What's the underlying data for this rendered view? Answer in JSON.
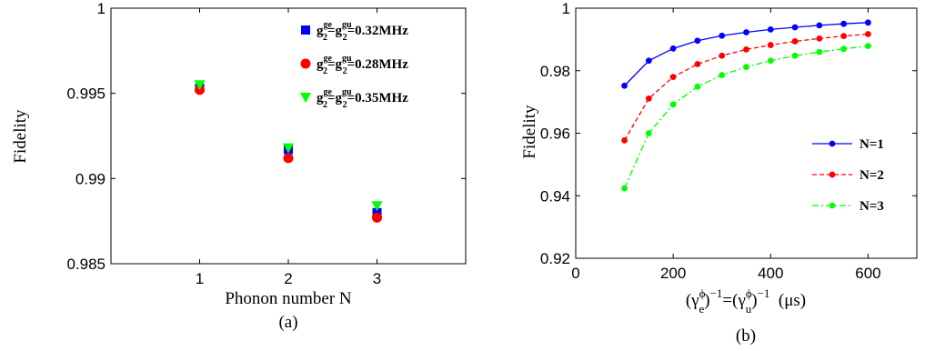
{
  "chart_data": [
    {
      "type": "scatter",
      "caption": "(a)",
      "xlabel": "Phonon number N",
      "ylabel": "Fidelity",
      "xlim": [
        0,
        4
      ],
      "ylim": [
        0.985,
        1
      ],
      "xticks": [
        1,
        2,
        3
      ],
      "xtick_labels": [
        "1",
        "2",
        "3"
      ],
      "yticks": [
        0.985,
        0.99,
        0.995,
        1
      ],
      "ytick_labels": [
        "0.985",
        "0.99",
        "0.995",
        "1"
      ],
      "grid": false,
      "legend_position": "top-right",
      "series": [
        {
          "name": "g2ge=g2gu=0.32MHz",
          "legend_main": "g",
          "legend_sup1": "ge",
          "legend_sub1": "2",
          "legend_mid": "=g",
          "legend_sup2": "gu",
          "legend_sub2": "2",
          "legend_tail": "=0.32MHz",
          "marker": "square",
          "color": "#0000ff",
          "x": [
            1,
            2,
            3
          ],
          "y": [
            0.9953,
            0.9917,
            0.988
          ]
        },
        {
          "name": "g2ge=g2gu=0.28MHz",
          "legend_main": "g",
          "legend_sup1": "ge",
          "legend_sub1": "2",
          "legend_mid": "=g",
          "legend_sup2": "gu",
          "legend_sub2": "2",
          "legend_tail": "=0.28MHz",
          "marker": "circle",
          "color": "#ff0000",
          "x": [
            1,
            2,
            3
          ],
          "y": [
            0.9952,
            0.9912,
            0.9877
          ]
        },
        {
          "name": "g2ge=g2gu=0.35MHz",
          "legend_main": "g",
          "legend_sup1": "ge",
          "legend_sub1": "2",
          "legend_mid": "=g",
          "legend_sup2": "gu",
          "legend_sub2": "2",
          "legend_tail": "=0.35MHz",
          "marker": "triangle-down",
          "color": "#00ff00",
          "x": [
            1,
            2,
            3
          ],
          "y": [
            0.9955,
            0.9918,
            0.9884
          ]
        }
      ]
    },
    {
      "type": "line",
      "caption": "(b)",
      "xlabel_parts": [
        "(γ",
        "ϕ",
        "e",
        ")",
        "−1",
        "=(γ",
        "ϕ",
        "u",
        ")",
        "−1",
        "  (μs)"
      ],
      "ylabel": "Fidelity",
      "xlim": [
        0,
        700
      ],
      "ylim": [
        0.92,
        1
      ],
      "xticks": [
        0,
        200,
        400,
        600
      ],
      "xtick_labels": [
        "0",
        "200",
        "400",
        "600"
      ],
      "yticks": [
        0.92,
        0.94,
        0.96,
        0.98,
        1
      ],
      "ytick_labels": [
        "0.92",
        "0.94",
        "0.96",
        "0.98",
        "1"
      ],
      "grid": false,
      "legend_position": "right",
      "x": [
        100,
        150,
        200,
        250,
        300,
        350,
        400,
        450,
        500,
        550,
        600
      ],
      "series": [
        {
          "name": "N=1",
          "color": "#0000ff",
          "linestyle": "solid",
          "values": [
            0.9752,
            0.9832,
            0.9871,
            0.9896,
            0.9912,
            0.9923,
            0.9932,
            0.9939,
            0.9945,
            0.995,
            0.9954
          ]
        },
        {
          "name": "N=2",
          "color": "#ff0000",
          "linestyle": "dashed",
          "values": [
            0.9577,
            0.9711,
            0.978,
            0.9821,
            0.9848,
            0.9868,
            0.9882,
            0.9894,
            0.9903,
            0.9911,
            0.9917
          ]
        },
        {
          "name": "N=3",
          "color": "#00ff00",
          "linestyle": "dashdot",
          "values": [
            0.9424,
            0.96,
            0.9692,
            0.9749,
            0.9786,
            0.9812,
            0.9832,
            0.9848,
            0.986,
            0.987,
            0.9879
          ]
        }
      ]
    }
  ]
}
